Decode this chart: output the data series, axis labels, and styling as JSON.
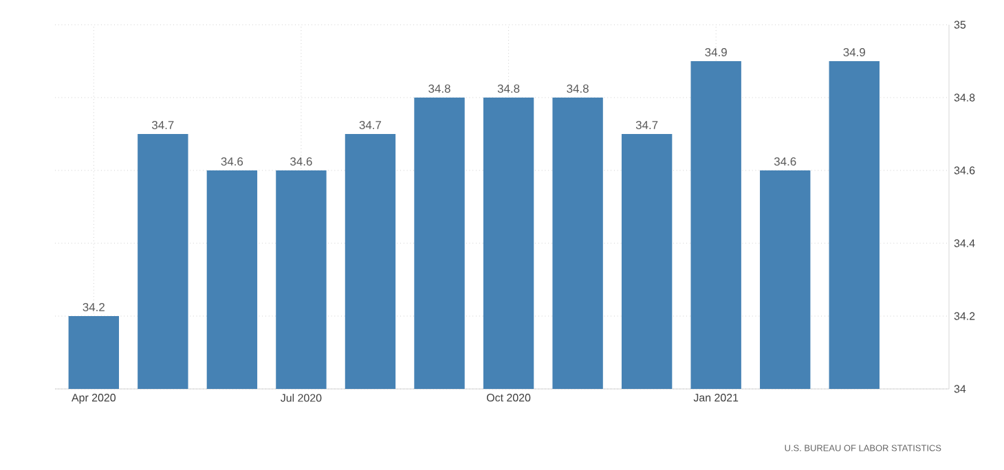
{
  "chart_data": {
    "type": "bar",
    "categories": [
      "Apr 2020",
      null,
      null,
      "Jul 2020",
      null,
      null,
      "Oct 2020",
      null,
      null,
      "Jan 2021",
      null,
      null
    ],
    "values": [
      34.2,
      34.7,
      34.6,
      34.6,
      34.7,
      34.8,
      34.8,
      34.8,
      34.7,
      34.9,
      34.6,
      34.9
    ],
    "color": "#4682b4",
    "ylim": [
      34,
      35
    ],
    "yticks": [
      34,
      34.2,
      34.4,
      34.6,
      34.8,
      35
    ],
    "grid": true,
    "data_labels": true,
    "annotations": [
      "U.S. BUREAU OF LABOR STATISTICS"
    ]
  }
}
